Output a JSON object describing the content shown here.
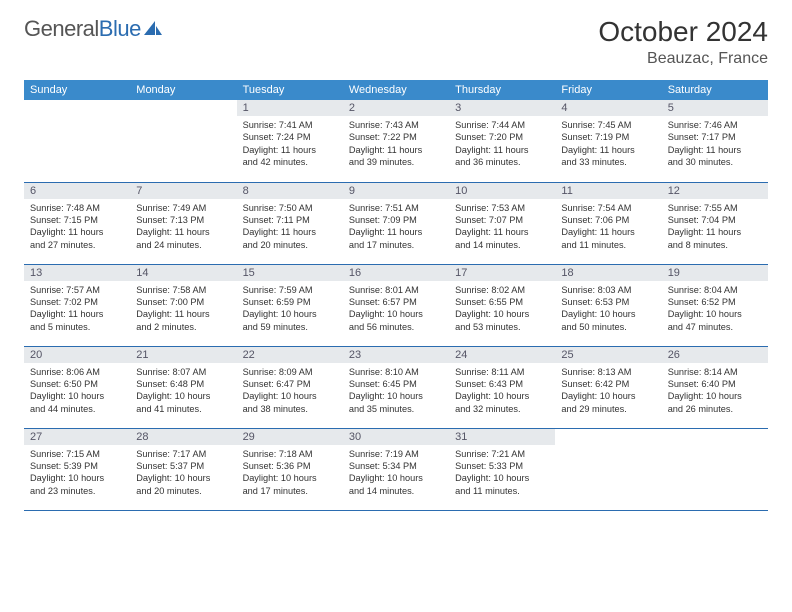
{
  "logo": {
    "word1": "General",
    "word2": "Blue"
  },
  "title": {
    "month": "October 2024",
    "location": "Beauzac, France"
  },
  "colors": {
    "header_bg": "#3a8acb",
    "daynum_bg": "#e6e9ec",
    "row_border": "#2b6cb0",
    "logo_blue": "#2b6cb0"
  },
  "weekdays": [
    "Sunday",
    "Monday",
    "Tuesday",
    "Wednesday",
    "Thursday",
    "Friday",
    "Saturday"
  ],
  "weeks": [
    [
      null,
      null,
      {
        "n": "1",
        "sr": "Sunrise: 7:41 AM",
        "ss": "Sunset: 7:24 PM",
        "d1": "Daylight: 11 hours",
        "d2": "and 42 minutes."
      },
      {
        "n": "2",
        "sr": "Sunrise: 7:43 AM",
        "ss": "Sunset: 7:22 PM",
        "d1": "Daylight: 11 hours",
        "d2": "and 39 minutes."
      },
      {
        "n": "3",
        "sr": "Sunrise: 7:44 AM",
        "ss": "Sunset: 7:20 PM",
        "d1": "Daylight: 11 hours",
        "d2": "and 36 minutes."
      },
      {
        "n": "4",
        "sr": "Sunrise: 7:45 AM",
        "ss": "Sunset: 7:19 PM",
        "d1": "Daylight: 11 hours",
        "d2": "and 33 minutes."
      },
      {
        "n": "5",
        "sr": "Sunrise: 7:46 AM",
        "ss": "Sunset: 7:17 PM",
        "d1": "Daylight: 11 hours",
        "d2": "and 30 minutes."
      }
    ],
    [
      {
        "n": "6",
        "sr": "Sunrise: 7:48 AM",
        "ss": "Sunset: 7:15 PM",
        "d1": "Daylight: 11 hours",
        "d2": "and 27 minutes."
      },
      {
        "n": "7",
        "sr": "Sunrise: 7:49 AM",
        "ss": "Sunset: 7:13 PM",
        "d1": "Daylight: 11 hours",
        "d2": "and 24 minutes."
      },
      {
        "n": "8",
        "sr": "Sunrise: 7:50 AM",
        "ss": "Sunset: 7:11 PM",
        "d1": "Daylight: 11 hours",
        "d2": "and 20 minutes."
      },
      {
        "n": "9",
        "sr": "Sunrise: 7:51 AM",
        "ss": "Sunset: 7:09 PM",
        "d1": "Daylight: 11 hours",
        "d2": "and 17 minutes."
      },
      {
        "n": "10",
        "sr": "Sunrise: 7:53 AM",
        "ss": "Sunset: 7:07 PM",
        "d1": "Daylight: 11 hours",
        "d2": "and 14 minutes."
      },
      {
        "n": "11",
        "sr": "Sunrise: 7:54 AM",
        "ss": "Sunset: 7:06 PM",
        "d1": "Daylight: 11 hours",
        "d2": "and 11 minutes."
      },
      {
        "n": "12",
        "sr": "Sunrise: 7:55 AM",
        "ss": "Sunset: 7:04 PM",
        "d1": "Daylight: 11 hours",
        "d2": "and 8 minutes."
      }
    ],
    [
      {
        "n": "13",
        "sr": "Sunrise: 7:57 AM",
        "ss": "Sunset: 7:02 PM",
        "d1": "Daylight: 11 hours",
        "d2": "and 5 minutes."
      },
      {
        "n": "14",
        "sr": "Sunrise: 7:58 AM",
        "ss": "Sunset: 7:00 PM",
        "d1": "Daylight: 11 hours",
        "d2": "and 2 minutes."
      },
      {
        "n": "15",
        "sr": "Sunrise: 7:59 AM",
        "ss": "Sunset: 6:59 PM",
        "d1": "Daylight: 10 hours",
        "d2": "and 59 minutes."
      },
      {
        "n": "16",
        "sr": "Sunrise: 8:01 AM",
        "ss": "Sunset: 6:57 PM",
        "d1": "Daylight: 10 hours",
        "d2": "and 56 minutes."
      },
      {
        "n": "17",
        "sr": "Sunrise: 8:02 AM",
        "ss": "Sunset: 6:55 PM",
        "d1": "Daylight: 10 hours",
        "d2": "and 53 minutes."
      },
      {
        "n": "18",
        "sr": "Sunrise: 8:03 AM",
        "ss": "Sunset: 6:53 PM",
        "d1": "Daylight: 10 hours",
        "d2": "and 50 minutes."
      },
      {
        "n": "19",
        "sr": "Sunrise: 8:04 AM",
        "ss": "Sunset: 6:52 PM",
        "d1": "Daylight: 10 hours",
        "d2": "and 47 minutes."
      }
    ],
    [
      {
        "n": "20",
        "sr": "Sunrise: 8:06 AM",
        "ss": "Sunset: 6:50 PM",
        "d1": "Daylight: 10 hours",
        "d2": "and 44 minutes."
      },
      {
        "n": "21",
        "sr": "Sunrise: 8:07 AM",
        "ss": "Sunset: 6:48 PM",
        "d1": "Daylight: 10 hours",
        "d2": "and 41 minutes."
      },
      {
        "n": "22",
        "sr": "Sunrise: 8:09 AM",
        "ss": "Sunset: 6:47 PM",
        "d1": "Daylight: 10 hours",
        "d2": "and 38 minutes."
      },
      {
        "n": "23",
        "sr": "Sunrise: 8:10 AM",
        "ss": "Sunset: 6:45 PM",
        "d1": "Daylight: 10 hours",
        "d2": "and 35 minutes."
      },
      {
        "n": "24",
        "sr": "Sunrise: 8:11 AM",
        "ss": "Sunset: 6:43 PM",
        "d1": "Daylight: 10 hours",
        "d2": "and 32 minutes."
      },
      {
        "n": "25",
        "sr": "Sunrise: 8:13 AM",
        "ss": "Sunset: 6:42 PM",
        "d1": "Daylight: 10 hours",
        "d2": "and 29 minutes."
      },
      {
        "n": "26",
        "sr": "Sunrise: 8:14 AM",
        "ss": "Sunset: 6:40 PM",
        "d1": "Daylight: 10 hours",
        "d2": "and 26 minutes."
      }
    ],
    [
      {
        "n": "27",
        "sr": "Sunrise: 7:15 AM",
        "ss": "Sunset: 5:39 PM",
        "d1": "Daylight: 10 hours",
        "d2": "and 23 minutes."
      },
      {
        "n": "28",
        "sr": "Sunrise: 7:17 AM",
        "ss": "Sunset: 5:37 PM",
        "d1": "Daylight: 10 hours",
        "d2": "and 20 minutes."
      },
      {
        "n": "29",
        "sr": "Sunrise: 7:18 AM",
        "ss": "Sunset: 5:36 PM",
        "d1": "Daylight: 10 hours",
        "d2": "and 17 minutes."
      },
      {
        "n": "30",
        "sr": "Sunrise: 7:19 AM",
        "ss": "Sunset: 5:34 PM",
        "d1": "Daylight: 10 hours",
        "d2": "and 14 minutes."
      },
      {
        "n": "31",
        "sr": "Sunrise: 7:21 AM",
        "ss": "Sunset: 5:33 PM",
        "d1": "Daylight: 10 hours",
        "d2": "and 11 minutes."
      },
      null,
      null
    ]
  ]
}
